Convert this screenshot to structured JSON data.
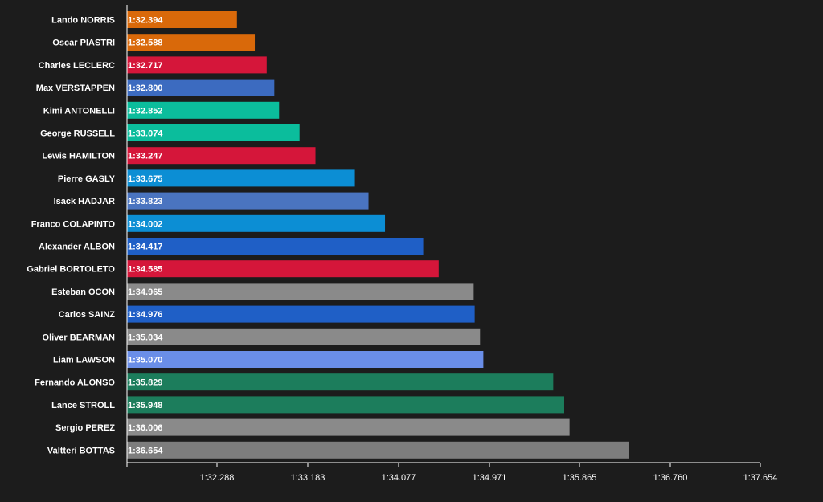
{
  "chart_data": {
    "type": "bar",
    "orientation": "horizontal",
    "title": "",
    "xlabel": "",
    "ylabel": "",
    "x_axis_ticks": [
      "1:32.288",
      "1:33.183",
      "1:34.077",
      "1:34.971",
      "1:35.865",
      "1:36.760",
      "1:37.654"
    ],
    "x_axis_range_seconds": [
      91.2,
      97.654
    ],
    "grid": false,
    "legend": "none",
    "bars": [
      {
        "driver": "Lando NORRIS",
        "time": "1:32.394",
        "seconds": 92.394,
        "color": "#d9690a"
      },
      {
        "driver": "Oscar PIASTRI",
        "time": "1:32.588",
        "seconds": 92.588,
        "color": "#d9690a"
      },
      {
        "driver": "Charles LECLERC",
        "time": "1:32.717",
        "seconds": 92.717,
        "color": "#d5163a"
      },
      {
        "driver": "Max VERSTAPPEN",
        "time": "1:32.800",
        "seconds": 92.8,
        "color": "#3c6bc0"
      },
      {
        "driver": "Kimi ANTONELLI",
        "time": "1:32.852",
        "seconds": 92.852,
        "color": "#0bbd9c"
      },
      {
        "driver": "George RUSSELL",
        "time": "1:33.074",
        "seconds": 93.074,
        "color": "#0bbd9c"
      },
      {
        "driver": "Lewis HAMILTON",
        "time": "1:33.247",
        "seconds": 93.247,
        "color": "#d5163a"
      },
      {
        "driver": "Pierre GASLY",
        "time": "1:33.675",
        "seconds": 93.675,
        "color": "#0c8ed4"
      },
      {
        "driver": "Isack HADJAR",
        "time": "1:33.823",
        "seconds": 93.823,
        "color": "#4a74c0"
      },
      {
        "driver": "Franco COLAPINTO",
        "time": "1:34.002",
        "seconds": 94.002,
        "color": "#0c8ed4"
      },
      {
        "driver": "Alexander ALBON",
        "time": "1:34.417",
        "seconds": 94.417,
        "color": "#1f5fc6"
      },
      {
        "driver": "Gabriel BORTOLETO",
        "time": "1:34.585",
        "seconds": 94.585,
        "color": "#d5163a"
      },
      {
        "driver": "Esteban OCON",
        "time": "1:34.965",
        "seconds": 94.965,
        "color": "#8a8a8a"
      },
      {
        "driver": "Carlos SAINZ",
        "time": "1:34.976",
        "seconds": 94.976,
        "color": "#1f5fc6"
      },
      {
        "driver": "Oliver BEARMAN",
        "time": "1:35.034",
        "seconds": 95.034,
        "color": "#8a8a8a"
      },
      {
        "driver": "Liam LAWSON",
        "time": "1:35.070",
        "seconds": 95.07,
        "color": "#6a8ee8"
      },
      {
        "driver": "Fernando ALONSO",
        "time": "1:35.829",
        "seconds": 95.829,
        "color": "#1c7d5c"
      },
      {
        "driver": "Lance STROLL",
        "time": "1:35.948",
        "seconds": 95.948,
        "color": "#1c7d5c"
      },
      {
        "driver": "Sergio PEREZ",
        "time": "1:36.006",
        "seconds": 96.006,
        "color": "#8a8a8a"
      },
      {
        "driver": "Valtteri BOTTAS",
        "time": "1:36.654",
        "seconds": 96.654,
        "color": "#7d7d7d"
      }
    ]
  }
}
